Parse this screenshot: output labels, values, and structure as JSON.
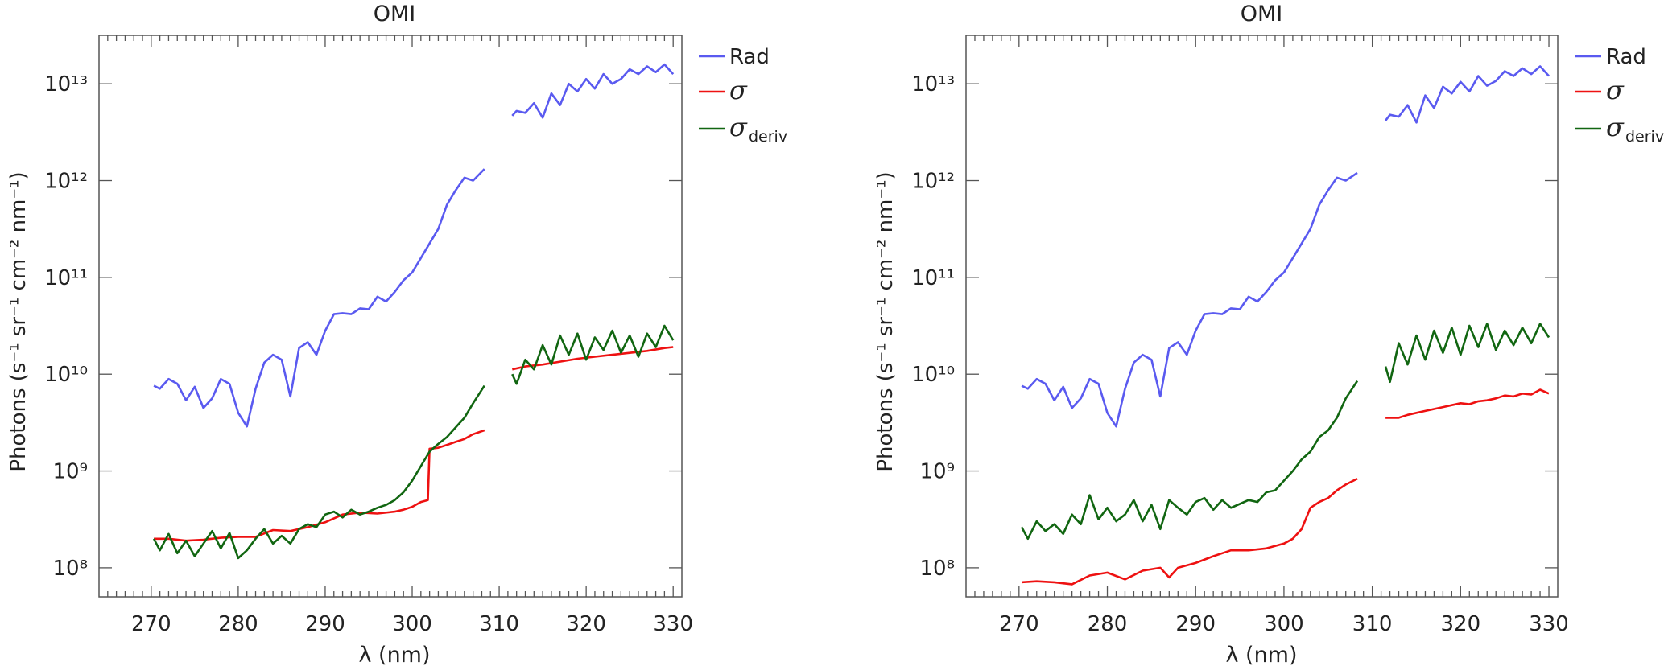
{
  "colors": {
    "rad": "#5a5af0",
    "sigma": "#ee1111",
    "sigma_deriv": "#116611"
  },
  "chart_data": [
    {
      "type": "line",
      "title": "OMI",
      "xlabel": "λ (nm)",
      "ylabel": "Photons  (s⁻¹ sr⁻¹ cm⁻² nm⁻¹)",
      "xlim": [
        264,
        331
      ],
      "ylim_log10": [
        7.7,
        13.5
      ],
      "yscale": "log",
      "xticks": [
        270,
        280,
        290,
        300,
        310,
        320,
        330
      ],
      "yticks": [
        "10⁸",
        "10⁹",
        "10¹⁰",
        "10¹¹",
        "10¹²",
        "10¹³"
      ],
      "legend": {
        "position": "outside-right",
        "entries": [
          "Rad",
          "σ",
          "σ",
          "deriv"
        ]
      },
      "series": [
        {
          "name": "Rad",
          "color_key": "rad",
          "segments": [
            {
              "x": [
                270.3,
                271,
                272,
                273,
                274,
                275,
                276,
                277,
                278,
                279,
                280,
                281,
                282,
                283,
                284,
                285,
                286,
                287,
                288,
                289,
                290,
                291,
                292,
                293,
                294,
                295,
                296,
                297,
                298,
                299,
                300,
                301,
                302,
                303,
                304,
                305,
                306,
                307,
                308.3
              ],
              "y_log10": [
                9.88,
                9.85,
                9.95,
                9.9,
                9.73,
                9.87,
                9.65,
                9.75,
                9.95,
                9.9,
                9.6,
                9.46,
                9.85,
                10.12,
                10.2,
                10.15,
                9.77,
                10.27,
                10.33,
                10.2,
                10.45,
                10.62,
                10.63,
                10.62,
                10.68,
                10.67,
                10.8,
                10.75,
                10.85,
                10.97,
                11.05,
                11.2,
                11.35,
                11.5,
                11.75,
                11.9,
                12.03,
                12.0,
                12.12
              ]
            },
            {
              "x": [
                311.5,
                312,
                313,
                314,
                315,
                316,
                317,
                318,
                319,
                320,
                321,
                322,
                323,
                324,
                325,
                326,
                327,
                328,
                329,
                330
              ],
              "y_log10": [
                12.67,
                12.72,
                12.7,
                12.8,
                12.65,
                12.9,
                12.78,
                13.0,
                12.92,
                13.05,
                12.95,
                13.1,
                13.0,
                13.05,
                13.15,
                13.1,
                13.18,
                13.12,
                13.2,
                13.1
              ]
            }
          ]
        },
        {
          "name": "σ",
          "color_key": "sigma",
          "segments": [
            {
              "x": [
                270.3,
                272,
                274,
                276,
                278,
                280,
                282,
                284,
                286,
                288,
                290,
                292,
                294,
                296,
                298,
                299,
                300,
                301,
                301.8,
                302,
                303,
                304,
                305,
                306,
                307,
                308.3
              ],
              "y_log10": [
                8.3,
                8.3,
                8.28,
                8.29,
                8.31,
                8.32,
                8.32,
                8.39,
                8.38,
                8.42,
                8.47,
                8.55,
                8.57,
                8.56,
                8.58,
                8.6,
                8.63,
                8.68,
                8.7,
                9.23,
                9.24,
                9.27,
                9.3,
                9.33,
                9.38,
                9.42
              ]
            },
            {
              "x": [
                311.5,
                313,
                315,
                317,
                319,
                321,
                323,
                325,
                327,
                329,
                330
              ],
              "y_log10": [
                10.05,
                10.08,
                10.1,
                10.13,
                10.16,
                10.18,
                10.2,
                10.22,
                10.24,
                10.27,
                10.28
              ]
            }
          ]
        },
        {
          "name": "σ deriv",
          "color_key": "sigma_deriv",
          "segments": [
            {
              "x": [
                270.3,
                271,
                272,
                273,
                274,
                275,
                276,
                277,
                278,
                279,
                280,
                281,
                282,
                283,
                284,
                285,
                286,
                287,
                288,
                289,
                290,
                291,
                292,
                293,
                294,
                295,
                296,
                297,
                298,
                299,
                300,
                301,
                302,
                303,
                304,
                305,
                306,
                307,
                308.3
              ],
              "y_log10": [
                8.3,
                8.18,
                8.35,
                8.15,
                8.28,
                8.12,
                8.25,
                8.38,
                8.2,
                8.36,
                8.1,
                8.18,
                8.3,
                8.4,
                8.25,
                8.33,
                8.25,
                8.4,
                8.45,
                8.42,
                8.55,
                8.58,
                8.52,
                8.6,
                8.55,
                8.58,
                8.62,
                8.65,
                8.7,
                8.78,
                8.9,
                9.05,
                9.2,
                9.28,
                9.35,
                9.45,
                9.55,
                9.7,
                9.88
              ]
            },
            {
              "x": [
                311.5,
                312,
                313,
                314,
                315,
                316,
                317,
                318,
                319,
                320,
                321,
                322,
                323,
                324,
                325,
                326,
                327,
                328,
                329,
                330
              ],
              "y_log10": [
                10.0,
                9.9,
                10.15,
                10.05,
                10.3,
                10.1,
                10.4,
                10.2,
                10.42,
                10.15,
                10.38,
                10.25,
                10.45,
                10.22,
                10.4,
                10.18,
                10.42,
                10.28,
                10.5,
                10.35
              ]
            }
          ]
        }
      ]
    },
    {
      "type": "line",
      "title": "OMI",
      "xlabel": "λ (nm)",
      "ylabel": "Photons  (s⁻¹ sr⁻¹ cm⁻² nm⁻¹)",
      "xlim": [
        264,
        331
      ],
      "ylim_log10": [
        7.7,
        13.5
      ],
      "yscale": "log",
      "xticks": [
        270,
        280,
        290,
        300,
        310,
        320,
        330
      ],
      "yticks": [
        "10⁸",
        "10⁹",
        "10¹⁰",
        "10¹¹",
        "10¹²",
        "10¹³"
      ],
      "legend": {
        "position": "outside-right",
        "entries": [
          "Rad",
          "σ",
          "σ",
          "deriv"
        ]
      },
      "series": [
        {
          "name": "Rad",
          "color_key": "rad",
          "segments": [
            {
              "x": [
                270.3,
                271,
                272,
                273,
                274,
                275,
                276,
                277,
                278,
                279,
                280,
                281,
                282,
                283,
                284,
                285,
                286,
                287,
                288,
                289,
                290,
                291,
                292,
                293,
                294,
                295,
                296,
                297,
                298,
                299,
                300,
                301,
                302,
                303,
                304,
                305,
                306,
                307,
                308.3
              ],
              "y_log10": [
                9.88,
                9.85,
                9.95,
                9.9,
                9.73,
                9.87,
                9.65,
                9.75,
                9.95,
                9.9,
                9.6,
                9.46,
                9.85,
                10.12,
                10.2,
                10.15,
                9.77,
                10.27,
                10.33,
                10.2,
                10.45,
                10.62,
                10.63,
                10.62,
                10.68,
                10.67,
                10.8,
                10.75,
                10.85,
                10.97,
                11.05,
                11.2,
                11.35,
                11.5,
                11.75,
                11.9,
                12.03,
                12.0,
                12.08
              ]
            },
            {
              "x": [
                311.5,
                312,
                313,
                314,
                315,
                316,
                317,
                318,
                319,
                320,
                321,
                322,
                323,
                324,
                325,
                326,
                327,
                328,
                329,
                330
              ],
              "y_log10": [
                12.62,
                12.68,
                12.66,
                12.78,
                12.6,
                12.88,
                12.75,
                12.97,
                12.9,
                13.02,
                12.92,
                13.08,
                12.98,
                13.03,
                13.13,
                13.08,
                13.16,
                13.1,
                13.18,
                13.08
              ]
            }
          ]
        },
        {
          "name": "σ",
          "color_key": "sigma",
          "segments": [
            {
              "x": [
                270.3,
                272,
                274,
                276,
                278,
                280,
                282,
                284,
                286,
                287,
                288,
                290,
                292,
                294,
                296,
                298,
                300,
                301,
                302,
                303,
                304,
                305,
                306,
                307,
                308.3
              ],
              "y_log10": [
                7.85,
                7.86,
                7.85,
                7.83,
                7.92,
                7.95,
                7.88,
                7.97,
                8.0,
                7.9,
                8.0,
                8.05,
                8.12,
                8.18,
                8.18,
                8.2,
                8.25,
                8.3,
                8.4,
                8.62,
                8.68,
                8.72,
                8.8,
                8.86,
                8.92
              ]
            },
            {
              "x": [
                311.5,
                313,
                314,
                315,
                316,
                317,
                318,
                319,
                320,
                321,
                322,
                323,
                324,
                325,
                326,
                327,
                328,
                329,
                330
              ],
              "y_log10": [
                9.55,
                9.55,
                9.58,
                9.6,
                9.62,
                9.64,
                9.66,
                9.68,
                9.7,
                9.69,
                9.72,
                9.73,
                9.75,
                9.78,
                9.77,
                9.8,
                9.79,
                9.84,
                9.8
              ]
            }
          ]
        },
        {
          "name": "σ deriv",
          "color_key": "sigma_deriv",
          "segments": [
            {
              "x": [
                270.3,
                271,
                272,
                273,
                274,
                275,
                276,
                277,
                278,
                279,
                280,
                281,
                282,
                283,
                284,
                285,
                286,
                287,
                288,
                289,
                290,
                291,
                292,
                293,
                294,
                295,
                296,
                297,
                298,
                299,
                300,
                301,
                302,
                303,
                304,
                305,
                306,
                307,
                308.3
              ],
              "y_log10": [
                8.42,
                8.3,
                8.48,
                8.38,
                8.45,
                8.35,
                8.55,
                8.45,
                8.75,
                8.5,
                8.62,
                8.48,
                8.55,
                8.7,
                8.48,
                8.65,
                8.4,
                8.7,
                8.62,
                8.55,
                8.68,
                8.72,
                8.6,
                8.7,
                8.62,
                8.66,
                8.7,
                8.68,
                8.78,
                8.8,
                8.9,
                9.0,
                9.12,
                9.2,
                9.35,
                9.42,
                9.55,
                9.75,
                9.93
              ]
            },
            {
              "x": [
                311.5,
                312,
                313,
                314,
                315,
                316,
                317,
                318,
                319,
                320,
                321,
                322,
                323,
                324,
                325,
                326,
                327,
                328,
                329,
                330
              ],
              "y_log10": [
                10.08,
                9.92,
                10.32,
                10.1,
                10.4,
                10.15,
                10.45,
                10.22,
                10.48,
                10.2,
                10.5,
                10.28,
                10.52,
                10.25,
                10.45,
                10.3,
                10.48,
                10.32,
                10.52,
                10.38
              ]
            }
          ]
        }
      ]
    }
  ]
}
